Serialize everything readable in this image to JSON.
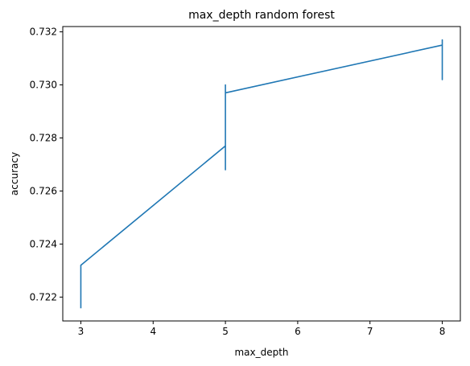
{
  "chart_data": {
    "type": "line",
    "title": "max_depth random forest",
    "xlabel": "max_depth",
    "ylabel": "accuracy",
    "xlim": [
      2.75,
      8.25
    ],
    "ylim": [
      0.7211,
      0.7322
    ],
    "xticks": [
      3,
      4,
      5,
      6,
      7,
      8
    ],
    "yticks": [
      0.722,
      0.724,
      0.726,
      0.728,
      0.73,
      0.732
    ],
    "ytick_labels": [
      "0.722",
      "0.724",
      "0.726",
      "0.728",
      "0.730",
      "0.732"
    ],
    "grid": false,
    "line_color": "#1f77b4",
    "series": [
      {
        "x": [
          3,
          3,
          3,
          3,
          3,
          5,
          5,
          5,
          5,
          5,
          5,
          5,
          8,
          8,
          8,
          8
        ],
        "y": [
          0.7216,
          0.722,
          0.7216,
          0.7219,
          0.7232,
          0.7277,
          0.7268,
          0.7283,
          0.7285,
          0.73,
          0.7286,
          0.7297,
          0.7315,
          0.7302,
          0.7317,
          0.7315
        ]
      }
    ]
  }
}
